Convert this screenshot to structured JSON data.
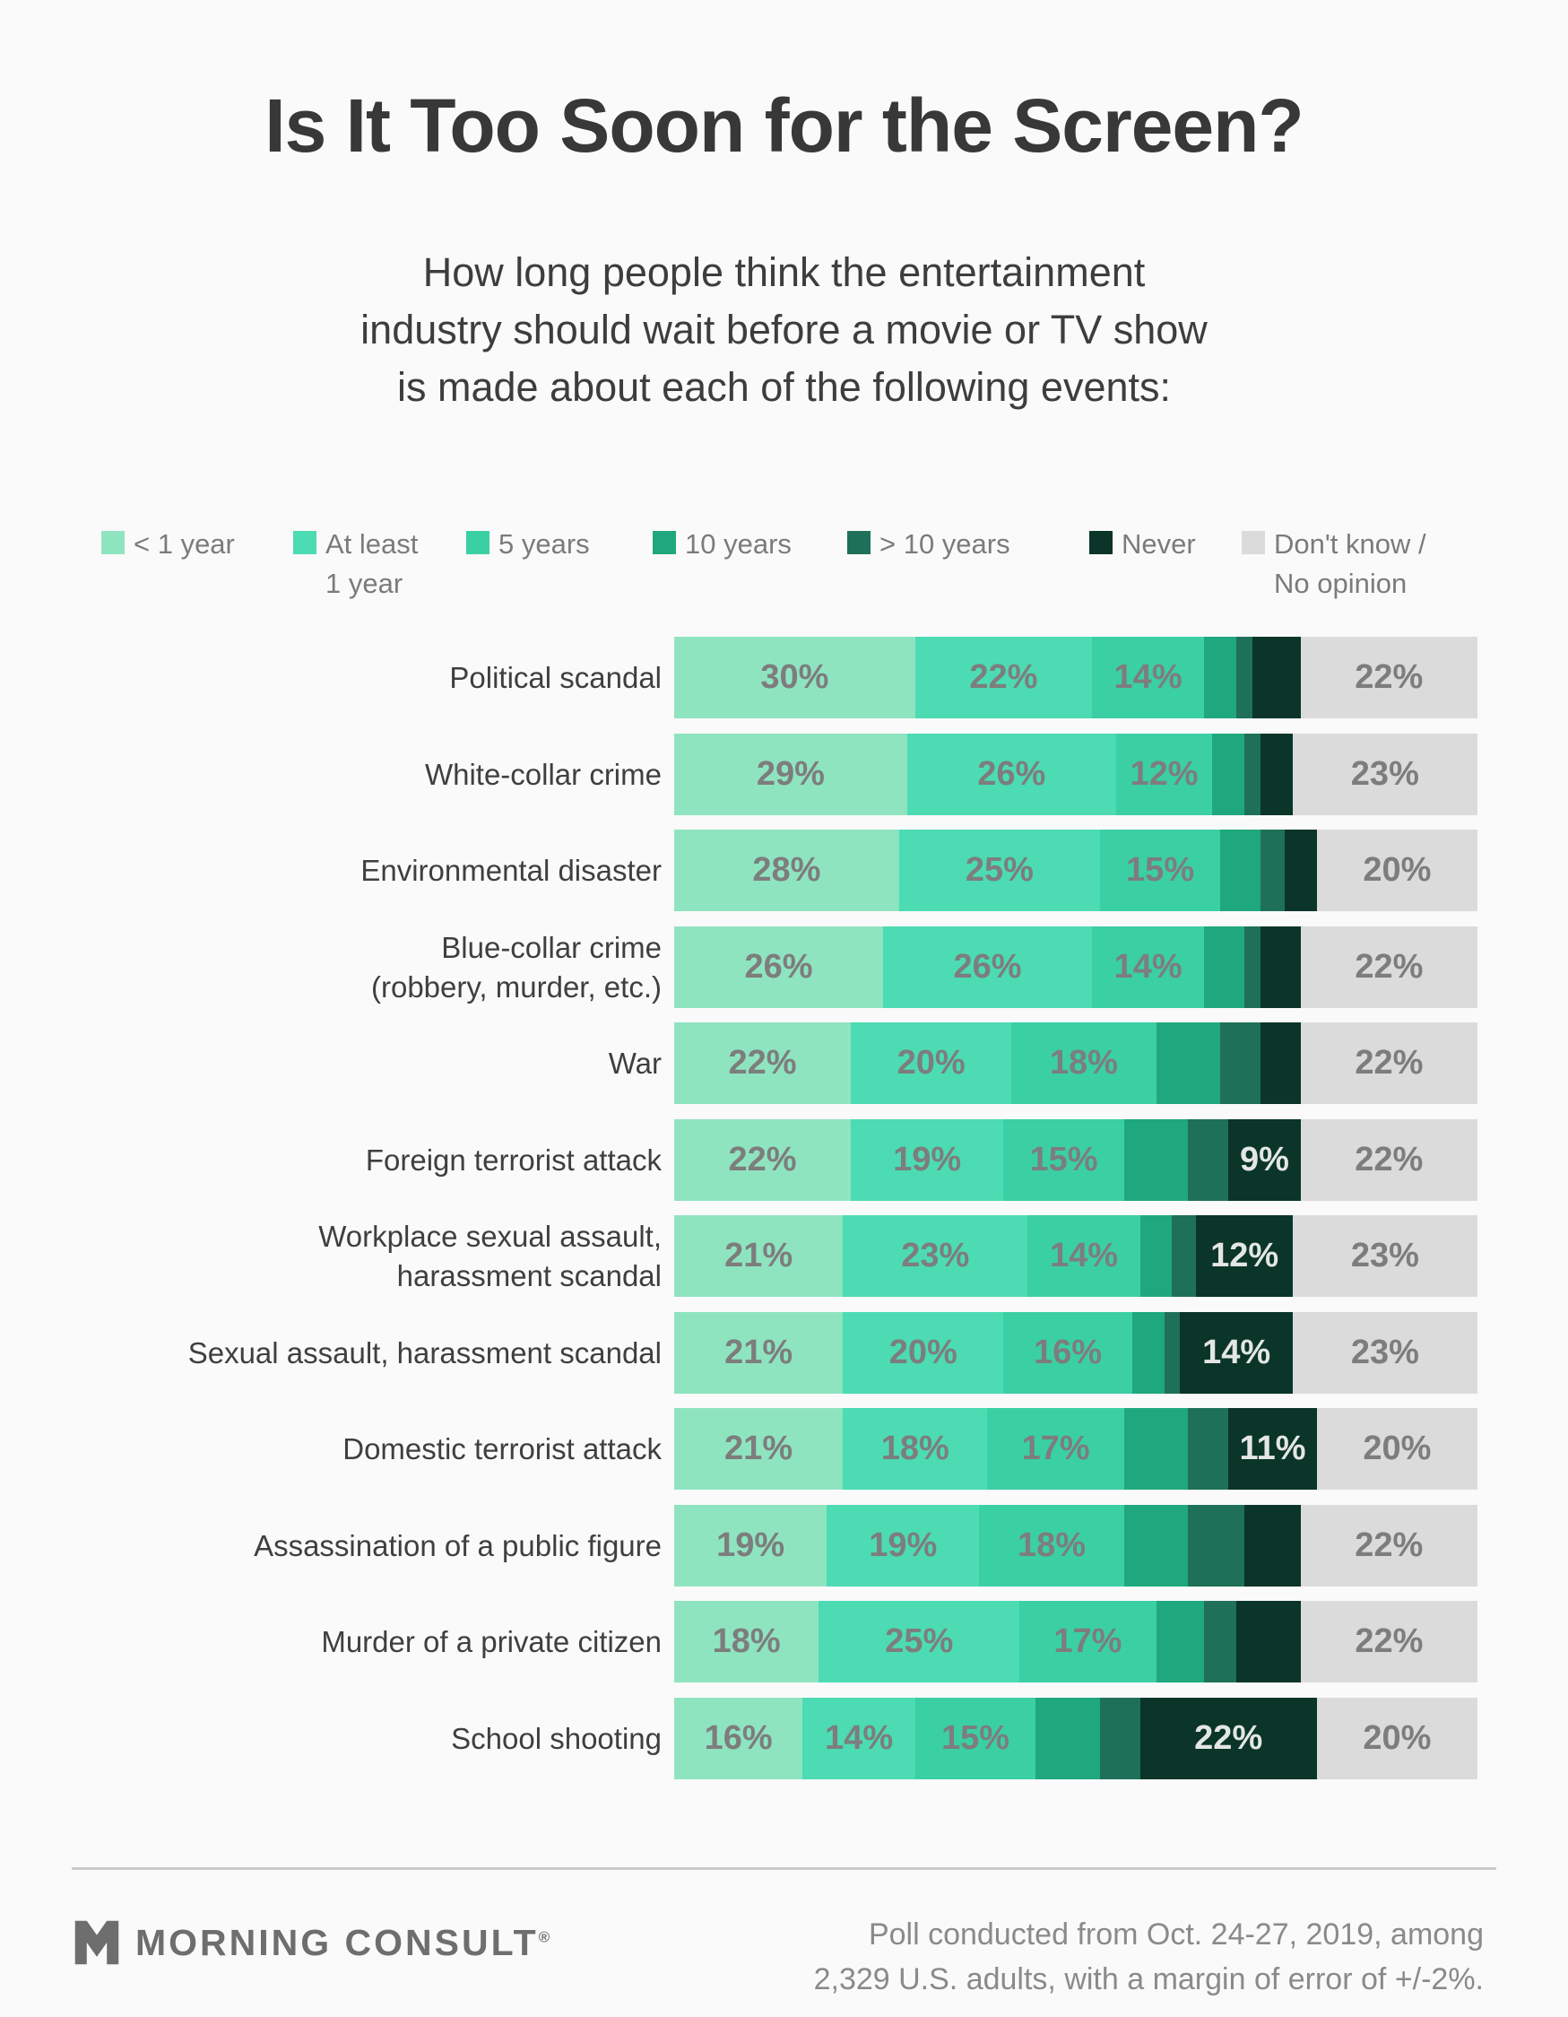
{
  "header": {
    "title": "Is It Too Soon for the Screen?",
    "subtitle_lines": [
      "How long people think the entertainment",
      "industry should wait before a movie or TV show",
      "is made about each of the following events:"
    ]
  },
  "chart_data": {
    "type": "bar",
    "orientation": "horizontal_stacked",
    "unit": "%",
    "xlim": [
      0,
      100
    ],
    "legend_position": "top",
    "grid": false,
    "categories": [
      [
        "Political scandal"
      ],
      [
        "White-collar crime"
      ],
      [
        "Environmental disaster"
      ],
      [
        "Blue-collar crime",
        "(robbery, murder, etc.)"
      ],
      [
        "War"
      ],
      [
        "Foreign terrorist attack"
      ],
      [
        "Workplace sexual assault,",
        "harassment scandal"
      ],
      [
        "Sexual assault, harassment scandal"
      ],
      [
        "Domestic terrorist attack"
      ],
      [
        "Assassination of a public figure"
      ],
      [
        "Murder of a private citizen"
      ],
      [
        "School shooting"
      ]
    ],
    "series": [
      {
        "name": "< 1 year",
        "legend_lines": [
          "< 1 year"
        ],
        "color": "#8FE4C0",
        "values": [
          30,
          29,
          28,
          26,
          22,
          22,
          21,
          21,
          21,
          19,
          18,
          16
        ]
      },
      {
        "name": "At least 1 year",
        "legend_lines": [
          "At least",
          "1 year"
        ],
        "color": "#4CDBB2",
        "values": [
          22,
          26,
          25,
          26,
          20,
          19,
          23,
          20,
          18,
          19,
          25,
          14
        ]
      },
      {
        "name": "5 years",
        "legend_lines": [
          "5 years"
        ],
        "color": "#3BCFA4",
        "values": [
          14,
          12,
          15,
          14,
          18,
          15,
          14,
          16,
          17,
          18,
          17,
          15
        ]
      },
      {
        "name": "10 years",
        "legend_lines": [
          "10 years"
        ],
        "color": "#1FA87D",
        "values": [
          4,
          4,
          5,
          5,
          8,
          8,
          4,
          4,
          8,
          8,
          6,
          8
        ]
      },
      {
        "name": "> 10 years",
        "legend_lines": [
          "> 10 years"
        ],
        "color": "#1F7058",
        "values": [
          2,
          2,
          3,
          2,
          5,
          5,
          3,
          2,
          5,
          7,
          4,
          5
        ]
      },
      {
        "name": "Never",
        "legend_lines": [
          "Never"
        ],
        "color": "#0A3528",
        "values": [
          6,
          4,
          4,
          5,
          5,
          9,
          12,
          14,
          11,
          7,
          8,
          22
        ]
      },
      {
        "name": "Don't know / No opinion",
        "legend_lines": [
          "Don't know /",
          "No opinion"
        ],
        "color": "#DBDBDB",
        "values": [
          22,
          23,
          20,
          22,
          22,
          22,
          23,
          23,
          20,
          22,
          22,
          20
        ]
      }
    ]
  },
  "footer": {
    "brand": "MORNING CONSULT",
    "reg_mark": "®",
    "source_lines": [
      "Poll conducted from Oct. 24-27, 2019, among",
      "2,329 U.S. adults, with a margin of error of +/-2%."
    ]
  },
  "colors": {
    "background": "#FAFAFA",
    "title_text": "#383838",
    "subtitle_text": "#3D3D3D",
    "legend_text": "#7B7B7B",
    "category_text": "#3F3F3F",
    "bar_label_gray": "#7D7D7D",
    "bar_label_light": "#E3E6E4",
    "divider": "#CBCBCB",
    "brand_text": "#6E6E6E",
    "source_text": "#8A8A8A"
  }
}
